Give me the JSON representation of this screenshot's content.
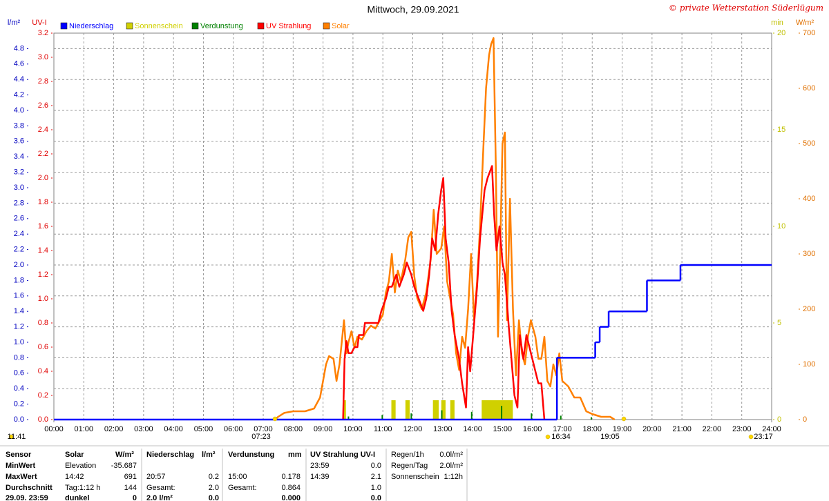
{
  "chart_data": {
    "type": "line",
    "title": "Mittwoch, 29.09.2021",
    "credit": "© private Wetterstation Süderlügum",
    "xlim": [
      0,
      24
    ],
    "xticks": [
      {
        "value": 0,
        "label": "00:00"
      },
      {
        "value": 1,
        "label": "01:00"
      },
      {
        "value": 2,
        "label": "02:00"
      },
      {
        "value": 3,
        "label": "03:00"
      },
      {
        "value": 4,
        "label": "04:00"
      },
      {
        "value": 5,
        "label": "05:00"
      },
      {
        "value": 6,
        "label": "06:00"
      },
      {
        "value": 7,
        "label": "07:00"
      },
      {
        "value": 8,
        "label": "08:00"
      },
      {
        "value": 9,
        "label": "09:00"
      },
      {
        "value": 10,
        "label": "10:00"
      },
      {
        "value": 11,
        "label": "11:00"
      },
      {
        "value": 12,
        "label": "12:00"
      },
      {
        "value": 13,
        "label": "13:00"
      },
      {
        "value": 14,
        "label": "14:00"
      },
      {
        "value": 15,
        "label": "15:00"
      },
      {
        "value": 16,
        "label": "16:00"
      },
      {
        "value": 17,
        "label": "17:00"
      },
      {
        "value": 18,
        "label": "18:00"
      },
      {
        "value": 19,
        "label": "19:00"
      },
      {
        "value": 20,
        "label": "20:00"
      },
      {
        "value": 21,
        "label": "21:00"
      },
      {
        "value": 22,
        "label": "22:00"
      },
      {
        "value": 23,
        "label": "23:00"
      },
      {
        "value": 24,
        "label": "24:00"
      }
    ],
    "axes": [
      {
        "label": "l/m²",
        "color": "#0000c0",
        "lim": [
          0,
          5
        ],
        "ticks": [
          {
            "value": 0,
            "label": "0.0"
          },
          0.2,
          0.4,
          0.6,
          0.8,
          {
            "value": 1,
            "label": "1.0"
          },
          1.2,
          1.4,
          1.6,
          1.8,
          {
            "value": 2,
            "label": "2.0"
          },
          2.2,
          2.4,
          2.6,
          2.8,
          {
            "value": 3,
            "label": "3.0"
          },
          3.2,
          3.4,
          3.6,
          3.8,
          {
            "value": 4,
            "label": "4.0"
          },
          4.2,
          4.4,
          4.6,
          4.8
        ]
      },
      {
        "label": "UV-I",
        "color": "#e00000",
        "lim": [
          0,
          3.2
        ],
        "ticks": [
          {
            "value": 0,
            "label": "0.0"
          },
          0.2,
          0.4,
          0.6,
          0.8,
          {
            "value": 1,
            "label": "1.0"
          },
          1.2,
          1.4,
          1.6,
          1.8,
          {
            "value": 2,
            "label": "2.0"
          },
          2.2,
          2.4,
          2.6,
          2.8,
          {
            "value": 3,
            "label": "3.0"
          },
          3.2
        ]
      },
      {
        "label": "min",
        "color": "#c0c000",
        "lim": [
          0,
          20
        ],
        "ticks": [
          0,
          5,
          10,
          15,
          20
        ]
      },
      {
        "label": "W/m²",
        "color": "#e07000",
        "lim": [
          0,
          700
        ],
        "ticks": [
          0,
          100,
          200,
          300,
          400,
          500,
          600,
          700
        ]
      }
    ],
    "grid": true,
    "series": [
      {
        "name": "Niederschlag",
        "color": "#0000ff",
        "kind": "step",
        "axis": 0,
        "x": [
          0,
          16.82,
          18.1,
          18.25,
          18.55,
          19.83,
          20.95
        ],
        "values": [
          0,
          0.8,
          1.0,
          1.2,
          1.4,
          1.8,
          2.0
        ]
      },
      {
        "name": "Sonnenschein",
        "color": "#d0d000",
        "kind": "bar",
        "axis": 2,
        "x": [
          9.72,
          11.33,
          11.38,
          11.8,
          11.85,
          12.72,
          12.77,
          12.82,
          13.0,
          13.05,
          13.3,
          13.35,
          14.35,
          14.4,
          14.45,
          14.5,
          14.55,
          14.6,
          14.65,
          14.7,
          14.75,
          14.8,
          14.85,
          14.9,
          14.95,
          15.0,
          15.05,
          15.1,
          15.15,
          15.2,
          15.25,
          15.3
        ],
        "values": [
          1,
          1,
          1,
          1,
          1,
          1,
          1,
          1,
          1,
          1,
          1,
          1,
          1,
          1,
          1,
          1,
          1,
          1,
          1,
          1,
          1,
          1,
          1,
          1,
          1,
          1,
          1,
          1,
          1,
          1,
          1,
          1
        ]
      },
      {
        "name": "Verdunstung",
        "color": "#008000",
        "kind": "bar",
        "axis": 0,
        "x": [
          9.85,
          10.98,
          11.95,
          12.97,
          13.97,
          14.97,
          15.97,
          16.95,
          17.97
        ],
        "values": [
          0.04,
          0.06,
          0.08,
          0.12,
          0.1,
          0.178,
          0.08,
          0.05,
          0.03
        ]
      },
      {
        "name": "UV Strahlung",
        "color": "#ff0000",
        "kind": "line",
        "axis": 1,
        "x": [
          9.67,
          9.72,
          9.78,
          9.85,
          9.95,
          10.05,
          10.15,
          10.2,
          10.35,
          10.4,
          10.85,
          10.95,
          11.1,
          11.2,
          11.3,
          11.45,
          11.55,
          11.7,
          11.8,
          11.95,
          12.05,
          12.2,
          12.35,
          12.45,
          12.55,
          12.65,
          12.75,
          12.85,
          12.95,
          13.02,
          13.1,
          13.2,
          13.3,
          13.4,
          13.55,
          13.65,
          13.78,
          13.85,
          13.92,
          14.02,
          14.15,
          14.25,
          14.4,
          14.5,
          14.65,
          14.72,
          14.8,
          14.9,
          15.0,
          15.08,
          15.2,
          15.3,
          15.4,
          15.5,
          15.58,
          15.7,
          15.8,
          15.9,
          16.0,
          16.1,
          16.2,
          16.3,
          16.4
        ],
        "values": [
          0,
          0.5,
          0.65,
          0.55,
          0.55,
          0.6,
          0.6,
          0.7,
          0.7,
          0.8,
          0.8,
          0.9,
          1.0,
          1.1,
          1.1,
          1.2,
          1.1,
          1.2,
          1.3,
          1.2,
          1.1,
          1.0,
          0.9,
          1.0,
          1.2,
          1.5,
          1.4,
          1.7,
          1.9,
          2.0,
          1.5,
          1.3,
          0.9,
          0.7,
          0.5,
          0.3,
          0.1,
          0.6,
          0.4,
          0.7,
          1.1,
          1.5,
          1.9,
          2.0,
          2.1,
          1.7,
          1.4,
          1.6,
          1.3,
          1.2,
          0.8,
          0.5,
          0.2,
          0.1,
          0.7,
          0.5,
          0.7,
          0.6,
          0.5,
          0.4,
          0.3,
          0.3,
          0
        ]
      },
      {
        "name": "Solar",
        "color": "#ff8000",
        "kind": "line",
        "axis": 3,
        "x": [
          7.38,
          7.5,
          7.7,
          8.0,
          8.4,
          8.7,
          8.9,
          9.1,
          9.2,
          9.35,
          9.45,
          9.55,
          9.7,
          9.78,
          9.85,
          9.95,
          10.05,
          10.15,
          10.3,
          10.45,
          10.6,
          10.75,
          10.9,
          11.0,
          11.1,
          11.2,
          11.3,
          11.4,
          11.5,
          11.6,
          11.75,
          11.85,
          11.95,
          12.05,
          12.15,
          12.3,
          12.45,
          12.6,
          12.7,
          12.8,
          12.95,
          13.05,
          13.15,
          13.25,
          13.35,
          13.45,
          13.55,
          13.65,
          13.75,
          13.85,
          13.95,
          14.05,
          14.15,
          14.25,
          14.35,
          14.45,
          14.55,
          14.62,
          14.7,
          14.78,
          14.85,
          14.92,
          15.0,
          15.08,
          15.15,
          15.25,
          15.35,
          15.45,
          15.55,
          15.65,
          15.75,
          15.85,
          15.95,
          16.1,
          16.2,
          16.3,
          16.4,
          16.5,
          16.6,
          16.7,
          16.8,
          16.9,
          17.0,
          17.2,
          17.4,
          17.6,
          17.8,
          18.0,
          18.3,
          18.6,
          18.75
        ],
        "values": [
          0,
          5,
          12,
          15,
          15,
          20,
          40,
          100,
          115,
          110,
          70,
          100,
          180,
          120,
          140,
          160,
          130,
          150,
          145,
          160,
          170,
          165,
          180,
          190,
          230,
          250,
          300,
          230,
          270,
          250,
          290,
          330,
          340,
          260,
          220,
          200,
          230,
          290,
          380,
          300,
          310,
          350,
          250,
          220,
          190,
          120,
          90,
          150,
          130,
          200,
          300,
          180,
          250,
          350,
          480,
          600,
          660,
          680,
          691,
          450,
          150,
          300,
          500,
          520,
          180,
          400,
          200,
          80,
          180,
          120,
          100,
          150,
          180,
          150,
          110,
          110,
          150,
          70,
          60,
          100,
          80,
          120,
          70,
          60,
          40,
          40,
          15,
          10,
          5,
          5,
          0
        ]
      }
    ],
    "annotations": [
      "11:41",
      "07:23",
      "16:34",
      "19:05",
      "23:17"
    ]
  },
  "table": {
    "row_headers": [
      "Sensor",
      "MinWert",
      "MaxWert",
      "Durchschnitt",
      "29.09. 23:59"
    ],
    "sections": [
      {
        "header": {
          "label": "Solar",
          "unit": "W/m²"
        },
        "rows": [
          {
            "label": "Elevation",
            "value": "-35.687"
          },
          {
            "label": "14:42",
            "value": "691"
          },
          {
            "label": "Tag:1:12 h",
            "value": "144"
          },
          {
            "label": "dunkel",
            "value": "0"
          }
        ]
      },
      {
        "header": {
          "label": "Niederschlag",
          "unit": "l/m²"
        },
        "rows": [
          null,
          {
            "label": "20:57",
            "value": "0.2"
          },
          {
            "label": "Gesamt:",
            "value": "2.0"
          },
          {
            "label": "2.0 l/m²",
            "value": "0.0"
          }
        ]
      },
      {
        "header": {
          "label": "Verdunstung",
          "unit": "mm"
        },
        "rows": [
          null,
          {
            "label": "15:00",
            "value": "0.178"
          },
          {
            "label": "Gesamt:",
            "value": "0.864"
          },
          {
            "value": "0.000"
          }
        ]
      },
      {
        "header": {
          "label": "UV Strahlung UV-I"
        },
        "rows": [
          {
            "label": "23:59",
            "value": "0.0"
          },
          {
            "label": "14:39",
            "value": "2.1"
          },
          {
            "value": "1.0"
          },
          {
            "value": "0.0"
          }
        ]
      },
      {
        "rows": [
          {
            "label": "Regen/1h",
            "value": "0.0l/m²"
          },
          {
            "label": "Regen/Tag",
            "value": "2.0l/m²"
          },
          {
            "label": "Sonnenschein",
            "value": "1:12h"
          }
        ]
      }
    ]
  }
}
